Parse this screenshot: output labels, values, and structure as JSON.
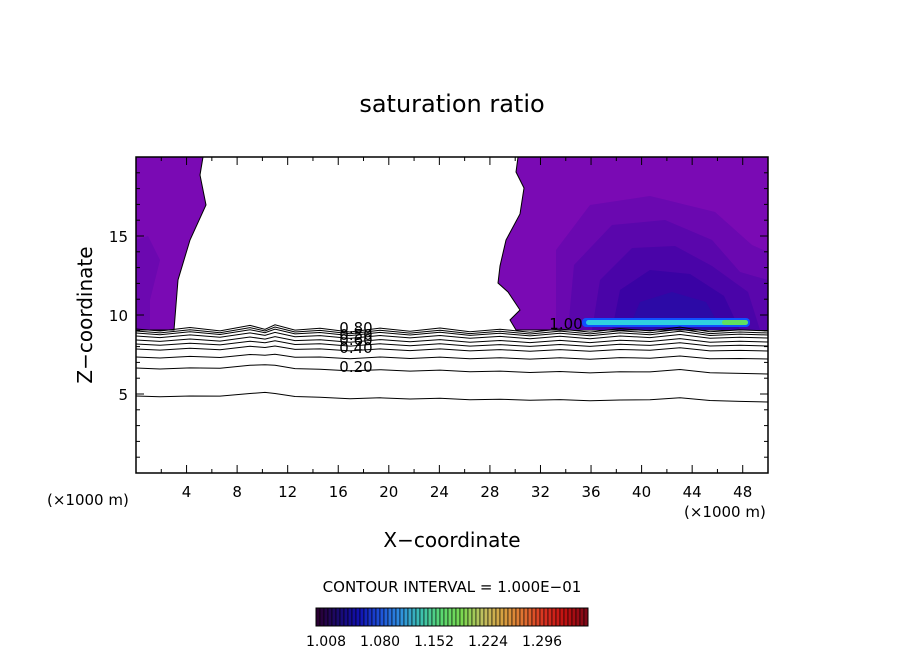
{
  "chart_data": {
    "type": "contour",
    "title": "saturation ratio",
    "xlabel": "X−coordinate",
    "ylabel": "Z−coordinate",
    "x_unit_left": "(×1000 m)",
    "x_unit_right": "(×1000 m)",
    "xlim": [
      0,
      50
    ],
    "ylim": [
      0,
      20
    ],
    "x_ticks": [
      "4",
      "8",
      "12",
      "16",
      "20",
      "24",
      "28",
      "32",
      "36",
      "40",
      "44",
      "48"
    ],
    "y_ticks": [
      "5",
      "10",
      "15"
    ],
    "contour_levels": [
      {
        "value": 0.1,
        "label": ""
      },
      {
        "value": 0.2,
        "label": "0.20"
      },
      {
        "value": 0.3,
        "label": ""
      },
      {
        "value": 0.4,
        "label": "0.40"
      },
      {
        "value": 0.5,
        "label": "0.50"
      },
      {
        "value": 0.6,
        "label": "0.60"
      },
      {
        "value": 0.7,
        "label": ""
      },
      {
        "value": 0.8,
        "label": "0.80"
      },
      {
        "value": 0.9,
        "label": ""
      },
      {
        "value": 1.0,
        "label": "1.00"
      }
    ],
    "contour_interval_text": "CONTOUR INTERVAL = 1.000E−01",
    "colorbar": {
      "tick_labels": [
        "1.008",
        "1.080",
        "1.152",
        "1.224",
        "1.296"
      ],
      "colors": [
        "#2a0033",
        "#1a0a6e",
        "#1010b0",
        "#1d4fd8",
        "#2f8fe0",
        "#3cc0b0",
        "#5ad870",
        "#7ad850",
        "#c0c060",
        "#d8a040",
        "#e07030",
        "#d83020",
        "#c01010",
        "#800818"
      ]
    },
    "regions": {
      "supersaturated_fill_color": "#7a0ab4",
      "inner_shading_colors": [
        "#6a08b0",
        "#5a06ac",
        "#4a04a8",
        "#3a02a4",
        "#2c0aa6"
      ],
      "peak_band_colors": [
        "#1050ff",
        "#30d0e0",
        "#60e060"
      ]
    }
  }
}
